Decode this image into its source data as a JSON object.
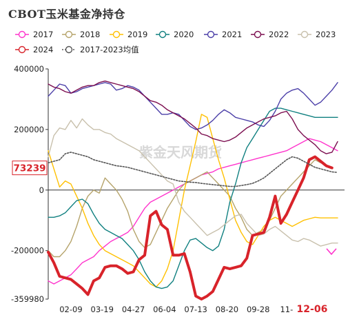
{
  "chart_data": {
    "type": "line",
    "title": "CBOT玉米基金净持仓",
    "watermark": "紫金天风期货",
    "ylim": [
      -359980,
      400000
    ],
    "yticks": [
      400000,
      200000,
      0,
      -200000,
      -359980
    ],
    "ytick_labels": [
      "400000",
      "200000",
      "0",
      "-200000",
      "-359980"
    ],
    "x_tick_labels": [
      "02-09",
      "03-19",
      "04-27",
      "06-04",
      "07-13",
      "08-20",
      "09-28",
      "11-",
      "12-06"
    ],
    "x_tick_week_index": [
      4,
      9.5,
      15,
      20.5,
      26,
      31.5,
      37,
      42,
      46.5
    ],
    "highlight_label": "73239",
    "highlight_value": 73239,
    "last_x_label": "12-06",
    "marker_2024_value": -205000,
    "legend_position": "top",
    "series": [
      {
        "name": "2017",
        "color": "#ff33cc",
        "dash": false,
        "width": 1.4,
        "values": [
          -300000,
          -310000,
          -300000,
          -290000,
          -280000,
          -260000,
          -240000,
          -230000,
          -220000,
          -200000,
          -185000,
          -170000,
          -160000,
          -150000,
          -140000,
          -120000,
          -90000,
          -60000,
          -40000,
          -30000,
          -20000,
          -10000,
          0,
          10000,
          20000,
          30000,
          40000,
          50000,
          55000,
          60000,
          70000,
          75000,
          80000,
          85000,
          90000,
          95000,
          100000,
          105000,
          110000,
          115000,
          120000,
          125000,
          130000,
          140000,
          150000,
          160000,
          170000,
          165000,
          160000,
          150000,
          140000,
          130000
        ]
      },
      {
        "name": "2018",
        "color": "#b5a36a",
        "dash": false,
        "width": 1.4,
        "values": [
          -200000,
          -220000,
          -220000,
          -200000,
          -170000,
          -120000,
          -60000,
          -20000,
          0,
          -10000,
          40000,
          20000,
          0,
          -30000,
          -70000,
          -130000,
          -170000,
          -190000,
          -180000,
          -140000,
          -100000,
          -60000,
          -30000,
          0,
          20000,
          30000,
          40000,
          50000,
          60000,
          40000,
          20000,
          0,
          -20000,
          -60000,
          -90000,
          -130000,
          -150000,
          -140000,
          -130000,
          -100000,
          -60000,
          -20000,
          0,
          20000,
          40000,
          60000,
          80000,
          100000,
          90000
        ]
      },
      {
        "name": "2019",
        "color": "#ffc000",
        "dash": false,
        "width": 1.4,
        "values": [
          130000,
          70000,
          10000,
          30000,
          20000,
          -20000,
          -60000,
          -110000,
          -150000,
          -180000,
          -200000,
          -210000,
          -220000,
          -230000,
          -240000,
          -250000,
          -270000,
          -290000,
          -310000,
          -320000,
          -300000,
          -260000,
          -200000,
          -100000,
          0,
          80000,
          160000,
          250000,
          240000,
          170000,
          100000,
          40000,
          -30000,
          -100000,
          -140000,
          -170000,
          -180000,
          -150000,
          -120000,
          -100000,
          -90000,
          -100000,
          -110000,
          -120000,
          -110000,
          -100000,
          -95000,
          -90000,
          -92000,
          -92000,
          -92000,
          -92000
        ]
      },
      {
        "name": "2020",
        "color": "#108080",
        "dash": false,
        "width": 1.4,
        "values": [
          -90000,
          -90000,
          -85000,
          -75000,
          -55000,
          -35000,
          -30000,
          -45000,
          -80000,
          -110000,
          -130000,
          -140000,
          -150000,
          -160000,
          -180000,
          -200000,
          -230000,
          -270000,
          -300000,
          -320000,
          -325000,
          -320000,
          -300000,
          -250000,
          -200000,
          -165000,
          -160000,
          -175000,
          -190000,
          -200000,
          -185000,
          -130000,
          -40000,
          20000,
          90000,
          140000,
          170000,
          200000,
          230000,
          260000,
          270000,
          270000,
          265000,
          260000,
          255000,
          250000,
          245000,
          240000,
          240000,
          240000,
          240000,
          240000
        ]
      },
      {
        "name": "2021",
        "color": "#4b3fa8",
        "dash": false,
        "width": 1.4,
        "values": [
          310000,
          330000,
          350000,
          345000,
          320000,
          325000,
          335000,
          340000,
          345000,
          350000,
          355000,
          350000,
          330000,
          335000,
          345000,
          340000,
          330000,
          310000,
          290000,
          270000,
          250000,
          250000,
          255000,
          250000,
          230000,
          210000,
          200000,
          205000,
          215000,
          230000,
          250000,
          265000,
          255000,
          240000,
          235000,
          230000,
          225000,
          215000,
          210000,
          230000,
          260000,
          300000,
          320000,
          330000,
          335000,
          320000,
          300000,
          280000,
          290000,
          310000,
          330000,
          355000
        ]
      },
      {
        "name": "2022",
        "color": "#7b0d4f",
        "dash": false,
        "width": 1.4,
        "values": [
          350000,
          340000,
          335000,
          325000,
          320000,
          330000,
          340000,
          345000,
          345000,
          355000,
          360000,
          355000,
          350000,
          345000,
          340000,
          335000,
          325000,
          310000,
          295000,
          290000,
          280000,
          265000,
          255000,
          245000,
          235000,
          220000,
          205000,
          185000,
          180000,
          170000,
          165000,
          160000,
          165000,
          175000,
          190000,
          205000,
          215000,
          225000,
          235000,
          240000,
          245000,
          255000,
          260000,
          235000,
          200000,
          180000,
          165000,
          150000,
          130000,
          120000,
          125000,
          160000
        ]
      },
      {
        "name": "2023",
        "color": "#c8c0ac",
        "dash": false,
        "width": 1.4,
        "values": [
          110000,
          180000,
          205000,
          200000,
          230000,
          205000,
          235000,
          215000,
          200000,
          200000,
          190000,
          185000,
          170000,
          160000,
          150000,
          140000,
          130000,
          110000,
          90000,
          70000,
          50000,
          30000,
          20000,
          -40000,
          -70000,
          -90000,
          -110000,
          -130000,
          -150000,
          -140000,
          -130000,
          -115000,
          -100000,
          -85000,
          -80000,
          -110000,
          -130000,
          -150000,
          -145000,
          -130000,
          -120000,
          -135000,
          -150000,
          -165000,
          -170000,
          -160000,
          -165000,
          -175000,
          -185000,
          -180000,
          -175000,
          -175000
        ]
      },
      {
        "name": "2024",
        "color": "#d8232a",
        "dash": false,
        "width": 4,
        "values": [
          -205000,
          -240000,
          -285000,
          -290000,
          -295000,
          -310000,
          -325000,
          -345000,
          -300000,
          -290000,
          -255000,
          -250000,
          -250000,
          -260000,
          -275000,
          -270000,
          -230000,
          -215000,
          -85000,
          -70000,
          -115000,
          -130000,
          -215000,
          -215000,
          -210000,
          -270000,
          -350000,
          -360000,
          -350000,
          -335000,
          -295000,
          -255000,
          -260000,
          -255000,
          -250000,
          -225000,
          -150000,
          -145000,
          -140000,
          -90000,
          -20000,
          -110000,
          -80000,
          -40000,
          0,
          40000,
          100000,
          110000,
          95000,
          80000,
          73239
        ]
      },
      {
        "name": "2017-2023均值",
        "color": "#555555",
        "dash": true,
        "width": 1.6,
        "values": [
          90000,
          95000,
          100000,
          120000,
          125000,
          120000,
          115000,
          110000,
          100000,
          95000,
          90000,
          85000,
          80000,
          78000,
          75000,
          70000,
          65000,
          60000,
          55000,
          50000,
          45000,
          40000,
          35000,
          30000,
          28000,
          26000,
          25000,
          22000,
          20000,
          18000,
          16000,
          14000,
          12000,
          12000,
          15000,
          18000,
          22000,
          30000,
          40000,
          55000,
          70000,
          85000,
          100000,
          110000,
          105000,
          95000,
          85000,
          75000,
          70000,
          65000,
          60000,
          58000
        ]
      }
    ]
  }
}
